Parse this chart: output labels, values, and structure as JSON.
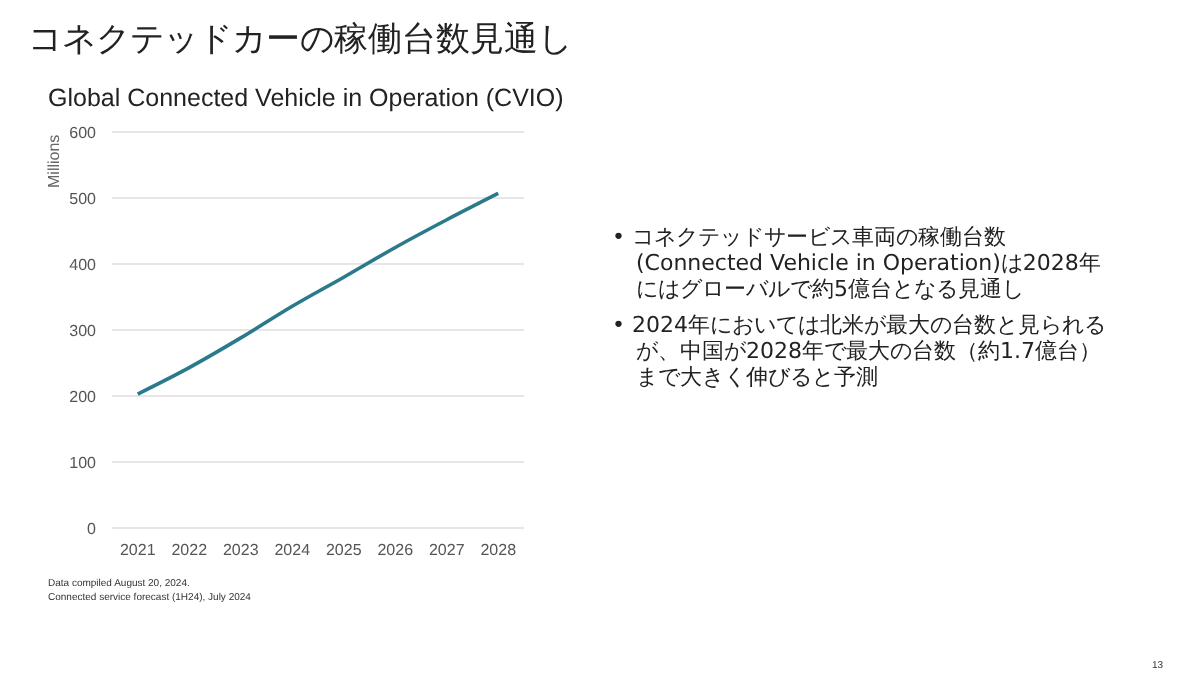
{
  "chart_data": {
    "type": "line",
    "title": "コネクテッドカーの稼働台数見通し",
    "subtitle": "Global Connected Vehicle in Operation (CVIO)",
    "ylabel": "Millions",
    "x": [
      2021,
      2022,
      2023,
      2024,
      2025,
      2026,
      2027,
      2028
    ],
    "series": [
      {
        "color": "#2a7a8c",
        "values": [
          203,
          243,
          288,
          336,
          380,
          425,
          467,
          507
        ]
      }
    ],
    "xlim": [
      2020.5,
      2028.5
    ],
    "xticks": [
      2021,
      2022,
      2023,
      2024,
      2025,
      2026,
      2027,
      2028
    ],
    "ylim": [
      0,
      600
    ],
    "yticks": [
      0,
      100,
      200,
      300,
      400,
      500,
      600
    ],
    "grid": "y",
    "marker": "none",
    "line_style": "solid",
    "annotations": [
      "• コネクテッドサービス車両の稼働台数(Connected Vehicle in Operation)は2028年にはグローバルで約5億台となる見通し",
      "• 2024年においては北米が最大の台数と見られるが、中国が2028年で最大の台数（約1.7億台）まで大きく伸びると予測",
      "Data compiled August 20, 2024.",
      "Connected service forecast (1H24), July 2024",
      "13"
    ]
  }
}
